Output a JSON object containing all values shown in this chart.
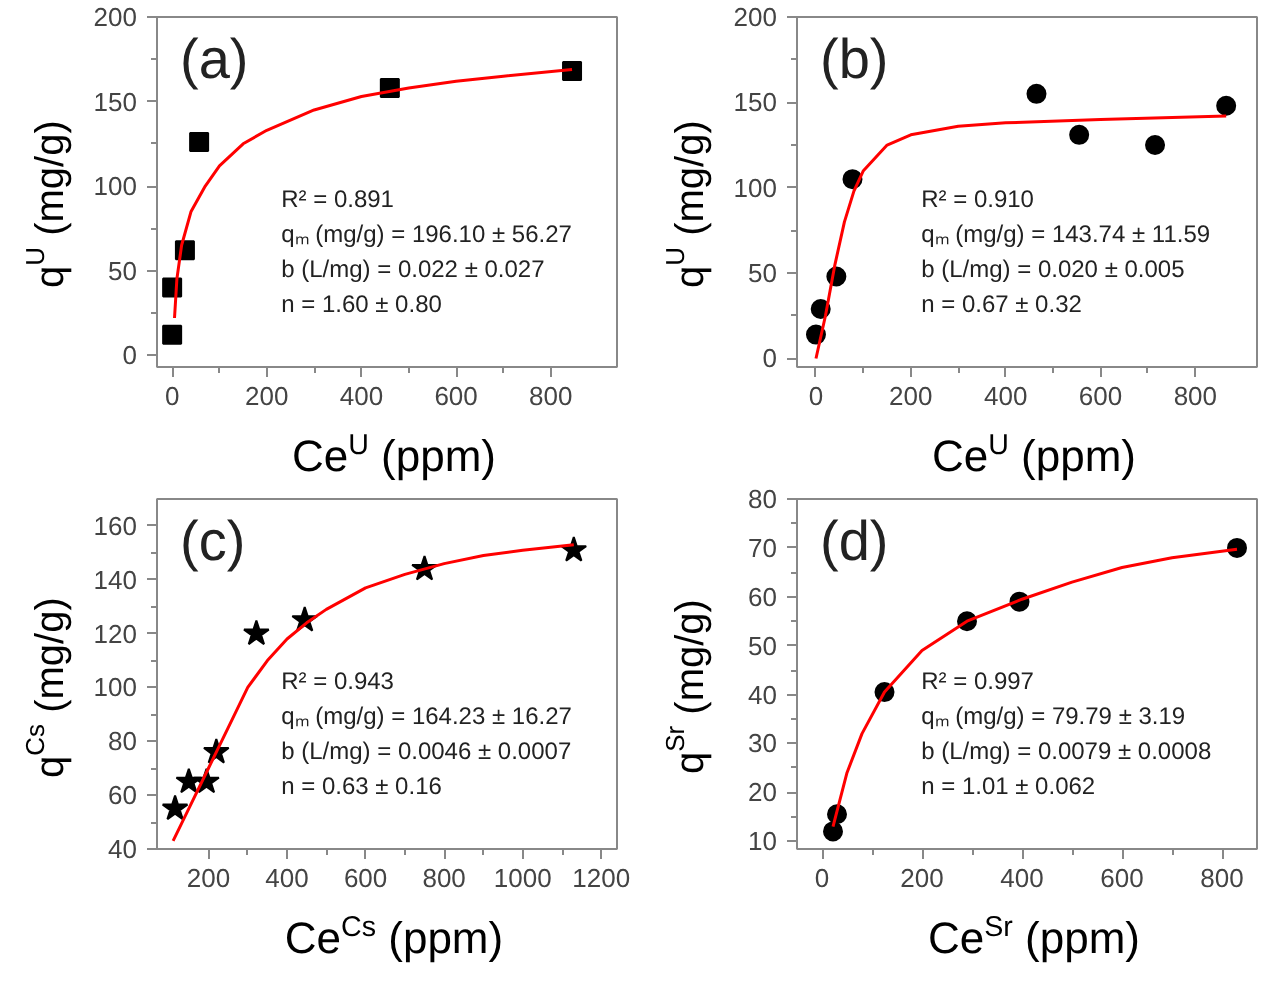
{
  "chart_data": [
    {
      "type": "scatter",
      "xlabel": "Ce$^{U}$ (ppm)",
      "ylabel": "q$^{U}$ (mg/g)",
      "xlim": [
        -32,
        940
      ],
      "ylim": [
        -7,
        200
      ],
      "xticks": [
        0,
        200,
        400,
        600,
        800
      ],
      "yticks": [
        0,
        50,
        100,
        150,
        200
      ],
      "grid": false,
      "series": [
        {
          "marker": "square",
          "color": "#000000",
          "x": [
            0,
            0,
            27,
            57,
            460,
            845
          ],
          "values": [
            12,
            40,
            62,
            126,
            158,
            168
          ]
        },
        {
          "type": "line",
          "color": "#ff0000",
          "x": [
            5,
            10,
            20,
            40,
            70,
            100,
            150,
            200,
            300,
            400,
            500,
            600,
            700,
            845
          ],
          "values": [
            22,
            45,
            65,
            85,
            100,
            112,
            125,
            133,
            145,
            153,
            158,
            162,
            165,
            169
          ]
        }
      ],
      "annotations": [
        "(a)",
        "R² = 0.891",
        "qₘ (mg/g) = 196.10 ± 56.27",
        "b (L/mg) = 0.022 ± 0.027",
        "n = 1.60 ± 0.80"
      ]
    },
    {
      "type": "scatter",
      "xlabel": "Ce$^{U}$ (ppm)",
      "ylabel": "q$^{U}$ (mg/g)",
      "xlim": [
        -40,
        930
      ],
      "ylim": [
        -5,
        200
      ],
      "xticks": [
        0,
        200,
        400,
        600,
        800
      ],
      "yticks": [
        0,
        50,
        100,
        150,
        200
      ],
      "grid": false,
      "series": [
        {
          "marker": "circle",
          "color": "#000000",
          "x": [
            0,
            10,
            43,
            77,
            465,
            555,
            715,
            865
          ],
          "values": [
            14,
            29,
            48,
            105,
            155,
            131,
            125,
            148
          ]
        },
        {
          "type": "line",
          "color": "#ff0000",
          "x": [
            0,
            20,
            40,
            60,
            80,
            100,
            150,
            200,
            300,
            400,
            600,
            865
          ],
          "values": [
            0,
            25,
            55,
            80,
            98,
            110,
            125,
            131,
            136,
            138,
            140,
            142
          ]
        }
      ],
      "annotations": [
        "(b)",
        "R² = 0.910",
        "qₘ (mg/g) = 143.74 ± 11.59",
        "b (L/mg) = 0.020 ± 0.005",
        "n = 0.67 ± 0.32"
      ]
    },
    {
      "type": "scatter",
      "xlabel": "Ce$^{Cs}$ (ppm)",
      "ylabel": "q$^{Cs}$ (mg/g)",
      "xlim": [
        69,
        1240
      ],
      "ylim": [
        40,
        170
      ],
      "xticks": [
        200,
        400,
        600,
        800,
        1000,
        1200
      ],
      "yticks": [
        40,
        60,
        80,
        100,
        120,
        140,
        160
      ],
      "grid": false,
      "series": [
        {
          "marker": "star",
          "color": "#000000",
          "x": [
            115,
            150,
            195,
            220,
            322,
            445,
            750,
            1130
          ],
          "values": [
            55,
            65,
            65,
            76,
            120,
            125,
            144,
            151
          ]
        },
        {
          "type": "line",
          "color": "#ff0000",
          "x": [
            110,
            150,
            200,
            250,
            300,
            350,
            400,
            450,
            500,
            600,
            700,
            800,
            900,
            1000,
            1130
          ],
          "values": [
            43,
            55,
            70,
            85,
            100,
            110,
            118,
            124,
            129,
            137,
            142,
            146,
            149,
            151,
            153
          ]
        }
      ],
      "annotations": [
        "(c)",
        "R² = 0.943",
        "qₘ (mg/g) = 164.23 ± 16.27",
        "b (L/mg) = 0.0046 ± 0.0007",
        "n = 0.63 ± 0.16"
      ]
    },
    {
      "type": "scatter",
      "xlabel": "Ce$^{Sr}$ (ppm)",
      "ylabel": "q$^{Sr}$ (mg/g)",
      "xlim": [
        -50,
        870
      ],
      "ylim": [
        8.4,
        80
      ],
      "xticks": [
        0,
        200,
        400,
        600,
        800
      ],
      "yticks": [
        10,
        20,
        30,
        40,
        50,
        60,
        70,
        80
      ],
      "grid": false,
      "series": [
        {
          "marker": "circle",
          "color": "#000000",
          "x": [
            22,
            30,
            125,
            290,
            395,
            830
          ],
          "values": [
            12,
            15.5,
            40.5,
            55,
            59,
            70
          ]
        },
        {
          "type": "line",
          "color": "#ff0000",
          "x": [
            22,
            50,
            80,
            125,
            200,
            290,
            400,
            500,
            600,
            700,
            830
          ],
          "values": [
            13,
            24,
            32,
            40.5,
            49,
            55,
            59.5,
            63,
            66,
            68,
            69.7
          ]
        }
      ],
      "annotations": [
        "(d)",
        "R² = 0.997",
        "qₘ (mg/g) = 79.79 ± 3.19",
        "b (L/mg) = 0.0079 ± 0.0008",
        "n = 1.01 ± 0.062"
      ]
    }
  ]
}
